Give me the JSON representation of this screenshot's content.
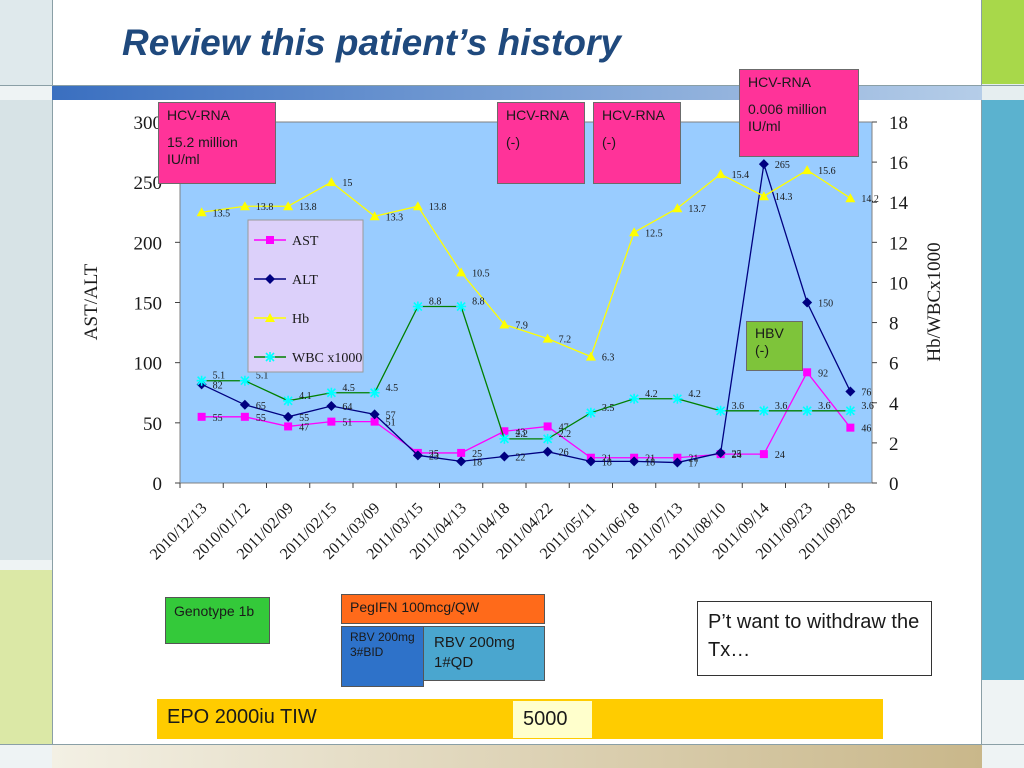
{
  "slide": {
    "title": "Review this patient’s history"
  },
  "annotations": {
    "hcv1_title": "HCV-RNA",
    "hcv1_value": "15.2  million IU/ml",
    "hcv2_title": "HCV-RNA",
    "hcv2_value": "(-)",
    "hcv3_title": "HCV-RNA",
    "hcv3_value": "(-)",
    "hcv4_title": "HCV-RNA",
    "hcv4_value": "0.006  million IU/ml",
    "hbv": "HBV (-)",
    "genotype": "Genotype 1b",
    "peg": "PegIFN 100mcg/QW",
    "rbv1": "RBV 200mg 3#BID",
    "rbv2": "RBV 200mg 1#QD",
    "want": "P’t want to withdraw the Tx…",
    "epo": "EPO 2000iu TIW",
    "epo2": "5000"
  },
  "colors": {
    "plot_bg": "#99ccff",
    "AST": "#ff00ff",
    "ALT": "#000080",
    "Hb": "#ffff00",
    "WBC": "#008000",
    "WBC_marker": "#00ffff",
    "title": "#1f497d"
  },
  "chart_data": {
    "type": "line",
    "categories": [
      "2010/12/13",
      "2010/01/12",
      "2011/02/09",
      "2011/02/15",
      "2011/03/09",
      "2011/03/15",
      "2011/04/13",
      "2011/04/18",
      "2011/04/22",
      "2011/05/11",
      "2011/06/18",
      "2011/07/13",
      "2011/08/10",
      "2011/09/14",
      "2011/09/23",
      "2011/09/28"
    ],
    "ylabel": "AST/ALT",
    "y2label": "Hb/WBCx1000",
    "ylim": [
      0,
      300
    ],
    "y2lim": [
      0,
      18
    ],
    "yticks": [
      "0",
      "50",
      "100",
      "150",
      "200",
      "250",
      "300"
    ],
    "y2ticks": [
      "0",
      "2",
      "4",
      "6",
      "8",
      "10",
      "12",
      "14",
      "16",
      "18"
    ],
    "legend": [
      "AST",
      "ALT",
      "Hb",
      "WBC x1000"
    ],
    "series": [
      {
        "name": "AST",
        "axis": "left",
        "marker": "square",
        "values": [
          55,
          55,
          47,
          51,
          51,
          25,
          25,
          43,
          47,
          21,
          21,
          21,
          24,
          24,
          92,
          46
        ]
      },
      {
        "name": "ALT",
        "axis": "left",
        "marker": "diamond",
        "values": [
          82,
          65,
          55,
          64,
          57,
          23,
          18,
          22,
          26,
          18,
          18,
          17,
          25,
          265,
          150,
          76
        ]
      },
      {
        "name": "Hb",
        "axis": "right",
        "marker": "triangle",
        "values": [
          13.5,
          13.8,
          13.8,
          15,
          13.3,
          13.8,
          10.5,
          7.9,
          7.2,
          6.3,
          12.5,
          13.7,
          15.4,
          14.3,
          15.6,
          14.2
        ]
      },
      {
        "name": "WBC x1000",
        "axis": "right",
        "marker": "star",
        "values": [
          5.1,
          5.1,
          4.1,
          4.5,
          4.5,
          8.8,
          8.8,
          2.2,
          2.2,
          3.5,
          4.2,
          4.2,
          3.6,
          3.6,
          3.6,
          3.6
        ]
      }
    ],
    "data_labels": {
      "AST": [
        "55",
        "55",
        "47",
        "51",
        "51",
        "25",
        "25",
        "43",
        "47",
        "21",
        "21",
        "21",
        "24",
        "24",
        "92",
        "46"
      ],
      "ALT": [
        "82",
        "65",
        "55",
        "64",
        "57",
        "23",
        "18",
        "22",
        "26",
        "18",
        "18",
        "17",
        "25",
        "265",
        "150",
        "76"
      ],
      "Hb": [
        "13.5",
        "13.8",
        "13.8",
        "15",
        "13.3",
        "13.8",
        "10.5",
        "7.9",
        "7.2",
        "6.3",
        "12.5",
        "13.7",
        "15.4",
        "14.3",
        "15.6",
        "14.2"
      ],
      "WBC x1000": [
        "5.1",
        "5.1",
        "4.1",
        "4.5",
        "4.5",
        "8.8",
        "8.8",
        "2.2",
        "2.2",
        "3.5",
        "4.2",
        "4.2",
        "3.6",
        "3.6",
        "3.6",
        "3.6"
      ]
    }
  }
}
